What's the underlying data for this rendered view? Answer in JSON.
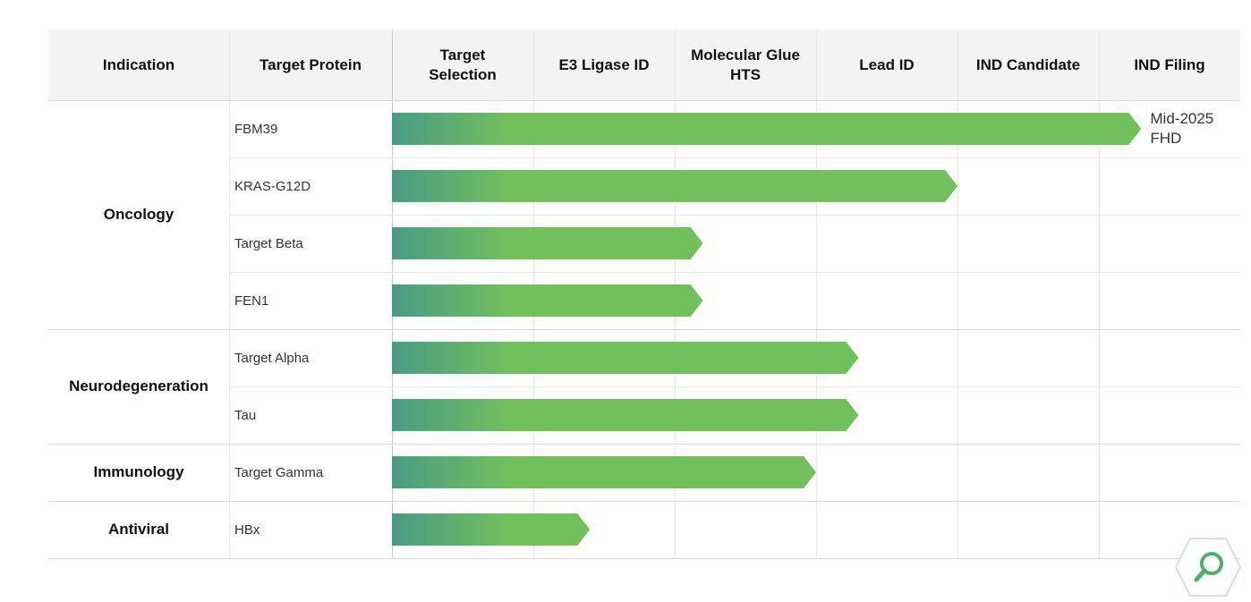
{
  "chart_data": {
    "type": "bar",
    "orientation": "horizontal",
    "headers": [
      "Indication",
      "Target Protein"
    ],
    "stages": [
      "Target Selection",
      "E3 Ligase ID",
      "Molecular Glue HTS",
      "Lead ID",
      "IND Candidate",
      "IND Filing"
    ],
    "xlim": [
      0,
      6
    ],
    "color": "#72bf5e",
    "start_color": "#4a9a84",
    "groups": [
      {
        "name": "Oncology",
        "categories": [
          "FBM39",
          "KRAS-G12D",
          "Target Beta",
          "FEN1"
        ],
        "values": [
          5.3,
          4.0,
          2.2,
          2.2
        ],
        "notes": [
          "Mid-2025 FHD",
          null,
          null,
          null
        ]
      },
      {
        "name": "Neurodegeneration",
        "categories": [
          "Target Alpha",
          "Tau"
        ],
        "values": [
          3.3,
          3.3
        ]
      },
      {
        "name": "Immunology",
        "categories": [
          "Target Gamma"
        ],
        "values": [
          3.0
        ]
      },
      {
        "name": "Antiviral",
        "categories": [
          "HBx"
        ],
        "values": [
          1.4
        ]
      }
    ]
  }
}
